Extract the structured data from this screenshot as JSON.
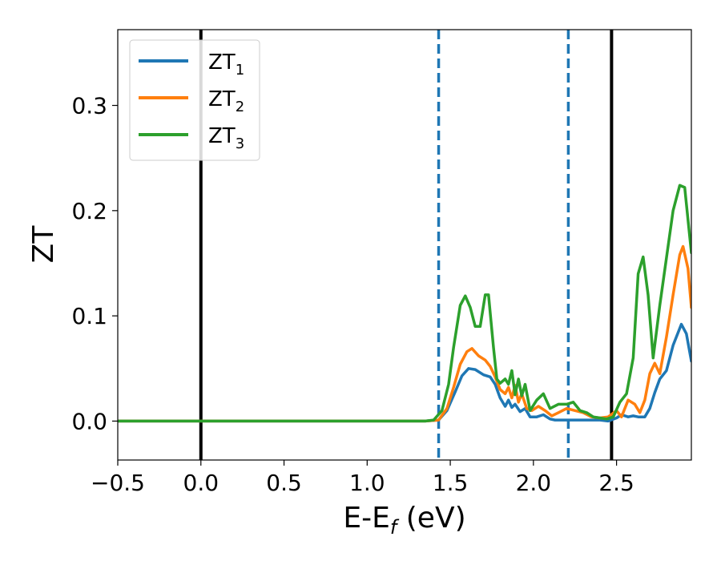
{
  "chart_data": {
    "type": "line",
    "xlabel": {
      "main": "E-E",
      "sub": "f",
      "rest": " (eV)"
    },
    "ylabel": "ZT",
    "xlim": [
      -0.5,
      2.95
    ],
    "ylim": [
      -0.037,
      0.372
    ],
    "xticks": [
      {
        "value": -0.5,
        "label": "−0.5"
      },
      {
        "value": 0.0,
        "label": "0.0"
      },
      {
        "value": 0.5,
        "label": "0.5"
      },
      {
        "value": 1.0,
        "label": "1.0"
      },
      {
        "value": 1.5,
        "label": "1.5"
      },
      {
        "value": 2.0,
        "label": "2.0"
      },
      {
        "value": 2.5,
        "label": "2.5"
      }
    ],
    "yticks": [
      {
        "value": 0.0,
        "label": "0.0"
      },
      {
        "value": 0.1,
        "label": "0.1"
      },
      {
        "value": 0.2,
        "label": "0.2"
      },
      {
        "value": 0.3,
        "label": "0.3"
      }
    ],
    "legend_position": "top-left",
    "vlines": [
      {
        "x": 0.0,
        "style": "solid",
        "color": "#000000"
      },
      {
        "x": 2.47,
        "style": "solid",
        "color": "#000000"
      },
      {
        "x": 1.43,
        "style": "dashed",
        "color": "#1f77b4"
      },
      {
        "x": 2.21,
        "style": "dashed",
        "color": "#1f77b4"
      }
    ],
    "series": [
      {
        "name": "ZT",
        "sub": "1",
        "color": "#1f77b4",
        "points": [
          [
            -0.5,
            0
          ],
          [
            1.35,
            0
          ],
          [
            1.43,
            0.001
          ],
          [
            1.48,
            0.01
          ],
          [
            1.53,
            0.028
          ],
          [
            1.57,
            0.043
          ],
          [
            1.61,
            0.05
          ],
          [
            1.65,
            0.049
          ],
          [
            1.7,
            0.044
          ],
          [
            1.74,
            0.042
          ],
          [
            1.77,
            0.035
          ],
          [
            1.8,
            0.022
          ],
          [
            1.83,
            0.014
          ],
          [
            1.85,
            0.02
          ],
          [
            1.87,
            0.013
          ],
          [
            1.89,
            0.016
          ],
          [
            1.92,
            0.009
          ],
          [
            1.95,
            0.012
          ],
          [
            1.98,
            0.004
          ],
          [
            2.02,
            0.004
          ],
          [
            2.06,
            0.006
          ],
          [
            2.1,
            0.002
          ],
          [
            2.13,
            0.001
          ],
          [
            2.2,
            0.001
          ],
          [
            2.3,
            0.001
          ],
          [
            2.4,
            0.001
          ],
          [
            2.45,
            0.0
          ],
          [
            2.5,
            0.003
          ],
          [
            2.53,
            0.006
          ],
          [
            2.57,
            0.004
          ],
          [
            2.6,
            0.005
          ],
          [
            2.63,
            0.004
          ],
          [
            2.67,
            0.004
          ],
          [
            2.7,
            0.012
          ],
          [
            2.73,
            0.027
          ],
          [
            2.76,
            0.04
          ],
          [
            2.8,
            0.048
          ],
          [
            2.84,
            0.072
          ],
          [
            2.89,
            0.092
          ],
          [
            2.92,
            0.083
          ],
          [
            2.95,
            0.057
          ]
        ]
      },
      {
        "name": "ZT",
        "sub": "2",
        "color": "#ff7f0e",
        "points": [
          [
            -0.5,
            0
          ],
          [
            1.35,
            0
          ],
          [
            1.43,
            0.001
          ],
          [
            1.48,
            0.012
          ],
          [
            1.52,
            0.032
          ],
          [
            1.56,
            0.054
          ],
          [
            1.6,
            0.066
          ],
          [
            1.63,
            0.069
          ],
          [
            1.67,
            0.062
          ],
          [
            1.71,
            0.058
          ],
          [
            1.74,
            0.052
          ],
          [
            1.77,
            0.042
          ],
          [
            1.8,
            0.03
          ],
          [
            1.83,
            0.026
          ],
          [
            1.85,
            0.032
          ],
          [
            1.87,
            0.022
          ],
          [
            1.89,
            0.034
          ],
          [
            1.91,
            0.018
          ],
          [
            1.93,
            0.026
          ],
          [
            1.96,
            0.012
          ],
          [
            1.99,
            0.01
          ],
          [
            2.03,
            0.014
          ],
          [
            2.07,
            0.01
          ],
          [
            2.11,
            0.005
          ],
          [
            2.15,
            0.008
          ],
          [
            2.2,
            0.012
          ],
          [
            2.25,
            0.01
          ],
          [
            2.3,
            0.008
          ],
          [
            2.35,
            0.004
          ],
          [
            2.4,
            0.003
          ],
          [
            2.45,
            0.004
          ],
          [
            2.5,
            0.01
          ],
          [
            2.53,
            0.004
          ],
          [
            2.57,
            0.02
          ],
          [
            2.61,
            0.016
          ],
          [
            2.64,
            0.008
          ],
          [
            2.67,
            0.02
          ],
          [
            2.7,
            0.045
          ],
          [
            2.73,
            0.055
          ],
          [
            2.76,
            0.045
          ],
          [
            2.8,
            0.08
          ],
          [
            2.84,
            0.12
          ],
          [
            2.88,
            0.158
          ],
          [
            2.9,
            0.166
          ],
          [
            2.93,
            0.145
          ],
          [
            2.95,
            0.108
          ]
        ]
      },
      {
        "name": "ZT",
        "sub": "3",
        "color": "#2ca02c",
        "points": [
          [
            -0.5,
            0
          ],
          [
            1.35,
            0
          ],
          [
            1.4,
            0.001
          ],
          [
            1.45,
            0.01
          ],
          [
            1.49,
            0.035
          ],
          [
            1.52,
            0.07
          ],
          [
            1.56,
            0.11
          ],
          [
            1.59,
            0.119
          ],
          [
            1.62,
            0.108
          ],
          [
            1.65,
            0.09
          ],
          [
            1.68,
            0.09
          ],
          [
            1.71,
            0.12
          ],
          [
            1.73,
            0.12
          ],
          [
            1.76,
            0.07
          ],
          [
            1.78,
            0.04
          ],
          [
            1.8,
            0.036
          ],
          [
            1.83,
            0.04
          ],
          [
            1.85,
            0.035
          ],
          [
            1.87,
            0.048
          ],
          [
            1.89,
            0.025
          ],
          [
            1.91,
            0.04
          ],
          [
            1.93,
            0.024
          ],
          [
            1.95,
            0.035
          ],
          [
            1.98,
            0.01
          ],
          [
            2.02,
            0.02
          ],
          [
            2.06,
            0.026
          ],
          [
            2.1,
            0.012
          ],
          [
            2.15,
            0.016
          ],
          [
            2.2,
            0.016
          ],
          [
            2.24,
            0.018
          ],
          [
            2.28,
            0.01
          ],
          [
            2.32,
            0.008
          ],
          [
            2.36,
            0.004
          ],
          [
            2.4,
            0.003
          ],
          [
            2.44,
            0.002
          ],
          [
            2.48,
            0.004
          ],
          [
            2.52,
            0.018
          ],
          [
            2.56,
            0.026
          ],
          [
            2.6,
            0.06
          ],
          [
            2.63,
            0.14
          ],
          [
            2.66,
            0.156
          ],
          [
            2.69,
            0.12
          ],
          [
            2.72,
            0.06
          ],
          [
            2.76,
            0.11
          ],
          [
            2.8,
            0.155
          ],
          [
            2.84,
            0.2
          ],
          [
            2.88,
            0.224
          ],
          [
            2.91,
            0.222
          ],
          [
            2.95,
            0.16
          ]
        ]
      }
    ]
  }
}
